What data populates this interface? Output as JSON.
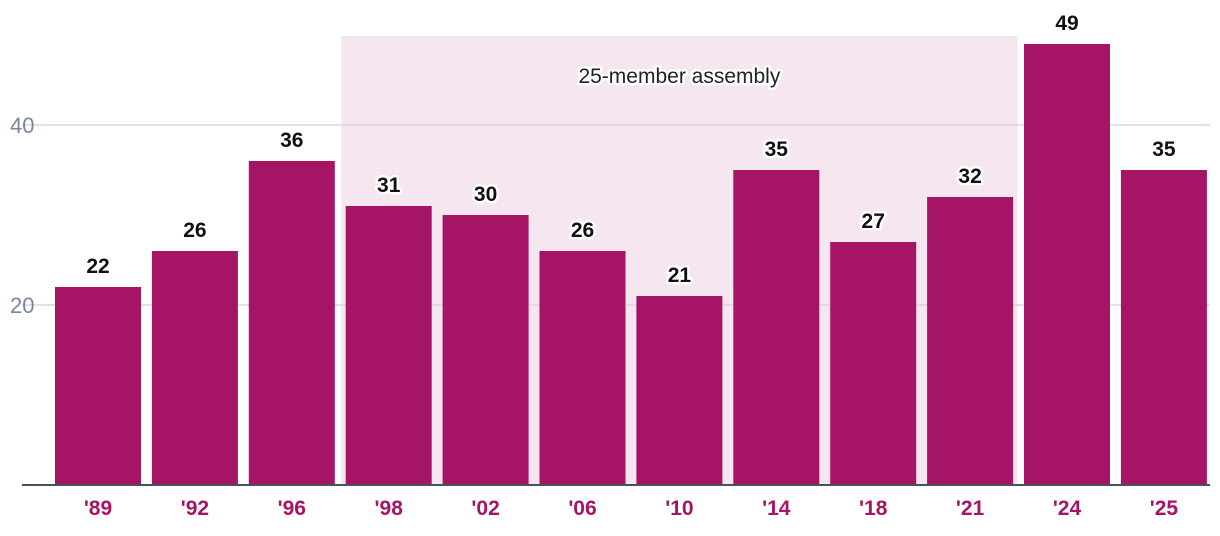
{
  "colors": {
    "bar": "#a61466",
    "category_text": "#a61466",
    "band": "#f6e6ef",
    "grid": "#d3d8e0",
    "axis": "#4a4f5a",
    "tick_text": "#7a8699",
    "value_text": "#111111"
  },
  "chart_data": {
    "type": "bar",
    "title": "",
    "xlabel": "",
    "ylabel": "",
    "categories": [
      "'89",
      "'92",
      "'96",
      "'98",
      "'02",
      "'06",
      "'10",
      "'14",
      "'18",
      "'21",
      "'24",
      "'25"
    ],
    "values": [
      22,
      26,
      36,
      31,
      30,
      26,
      21,
      35,
      27,
      32,
      49,
      35
    ],
    "value_labels": [
      "22",
      "26",
      "36",
      "31",
      "30",
      "26",
      "21",
      "35",
      "27",
      "32",
      "49",
      "35"
    ],
    "ylim": [
      0,
      50
    ],
    "yticks": [
      20,
      40
    ],
    "ytick_labels": [
      "20",
      "40"
    ],
    "grid": true,
    "annotation": {
      "label": "25-member assembly",
      "from_category": "'98",
      "to_category": "'21"
    }
  }
}
